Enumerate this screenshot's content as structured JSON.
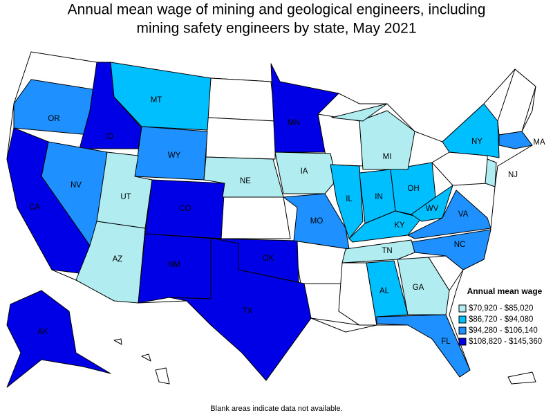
{
  "header": {
    "title": [
      "Annual mean wage of mining and geological engineers, including",
      "mining safety engineers by state, May 2021"
    ]
  },
  "legend": {
    "title": "Annual mean wage",
    "items": [
      {
        "label": "$70,920 - $85,020",
        "color": "#b0ecf0"
      },
      {
        "label": "$86,720 - $94,080",
        "color": "#00bfff"
      },
      {
        "label": "$94,280 - $106,140",
        "color": "#1e90ff"
      },
      {
        "label": "$108,820 - $145,360",
        "color": "#0000e6"
      }
    ]
  },
  "states": [
    {
      "label": "OR",
      "color": "#1e90ff"
    },
    {
      "label": "ID",
      "color": "#0000e6"
    },
    {
      "label": "MT",
      "color": "#00bfff"
    },
    {
      "label": "WY",
      "color": "#1e90ff"
    },
    {
      "label": "NV",
      "color": "#1e90ff"
    },
    {
      "label": "CA",
      "color": "#0000e6"
    },
    {
      "label": "UT",
      "color": "#b0ecf0"
    },
    {
      "label": "CO",
      "color": "#0000e6"
    },
    {
      "label": "AZ",
      "color": "#b0ecf0"
    },
    {
      "label": "NM",
      "color": "#0000e6"
    },
    {
      "label": "TX",
      "color": "#0000e6"
    },
    {
      "label": "OK",
      "color": "#0000e6"
    },
    {
      "label": "NE",
      "color": "#b0ecf0"
    },
    {
      "label": "IA",
      "color": "#b0ecf0"
    },
    {
      "label": "MN",
      "color": "#0000e6"
    },
    {
      "label": "MO",
      "color": "#1e90ff"
    },
    {
      "label": "IL",
      "color": "#00bfff"
    },
    {
      "label": "IN",
      "color": "#00bfff"
    },
    {
      "label": "OH",
      "color": "#00bfff"
    },
    {
      "label": "MI",
      "color": "#b0ecf0"
    },
    {
      "label": "KY",
      "color": "#00bfff"
    },
    {
      "label": "WV",
      "color": "#00bfff"
    },
    {
      "label": "VA",
      "color": "#1e90ff"
    },
    {
      "label": "NC",
      "color": "#1e90ff"
    },
    {
      "label": "TN",
      "color": "#b0ecf0"
    },
    {
      "label": "AL",
      "color": "#00bfff"
    },
    {
      "label": "GA",
      "color": "#b0ecf0"
    },
    {
      "label": "FL",
      "color": "#1e90ff"
    },
    {
      "label": "NY",
      "color": "#00bfff"
    },
    {
      "label": "MA",
      "color": "#1e90ff"
    },
    {
      "label": "NJ",
      "color": "#b0ecf0"
    },
    {
      "label": "AK",
      "color": "#0000e6"
    }
  ],
  "footer": {
    "note": "Blank areas indicate data not available."
  }
}
